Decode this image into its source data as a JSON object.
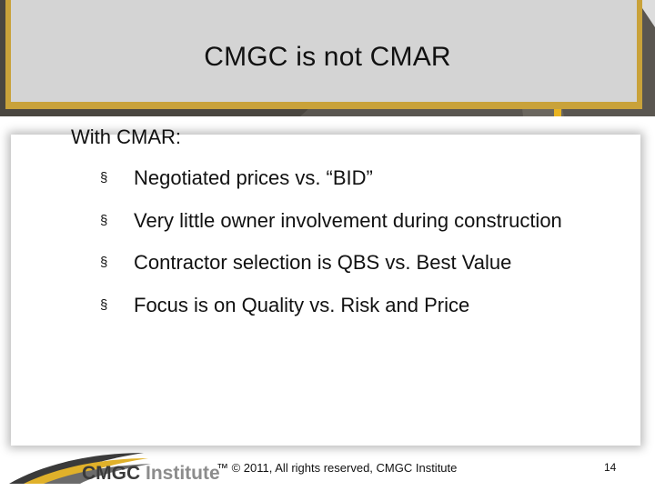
{
  "slide": {
    "title": "CMGC is not CMAR",
    "lead": "With CMAR:",
    "bullet_symbol": "§",
    "bullets": [
      "Negotiated prices vs. “BID”",
      "Very little owner involvement during construction",
      "Contractor selection is QBS vs. Best Value",
      "Focus is on Quality vs. Risk and Price"
    ]
  },
  "footer": {
    "logo_part1": "CMGC ",
    "logo_part2": "Institute",
    "copyright": "™  © 2011, All rights reserved, CMGC Institute",
    "page_number": "14"
  },
  "colors": {
    "accent_gold": "#c9a23a",
    "header_dark": "#3c3a36",
    "title_box": "#d4d4d4",
    "text": "#111111"
  }
}
